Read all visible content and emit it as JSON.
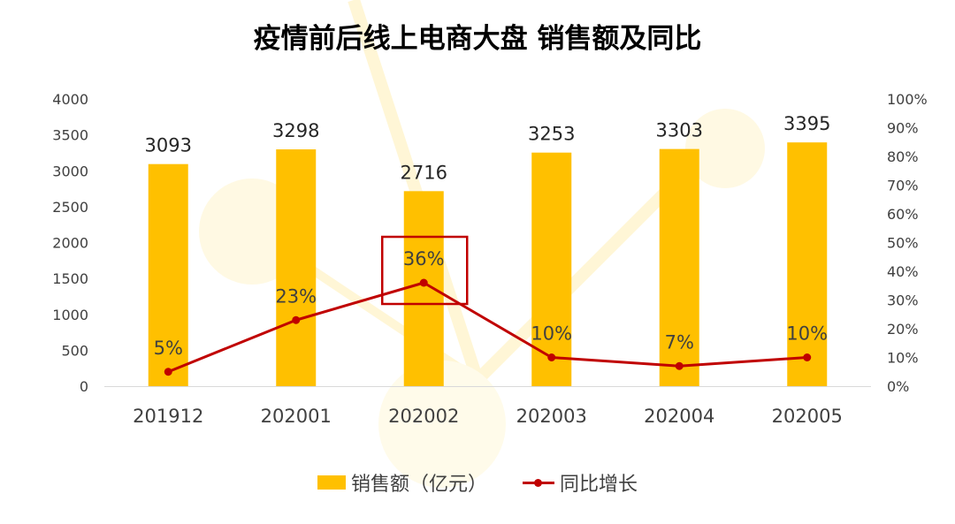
{
  "chart_data": {
    "type": "bar+line",
    "title": "疫情前后线上电商大盘 销售额及同比",
    "categories": [
      "201912",
      "202001",
      "202002",
      "202003",
      "202004",
      "202005"
    ],
    "series": [
      {
        "name": "销售额（亿元）",
        "type": "bar",
        "axis": "left",
        "values": [
          3093,
          3298,
          2716,
          3253,
          3303,
          3395
        ]
      },
      {
        "name": "同比增长",
        "type": "line",
        "axis": "right",
        "values": [
          5,
          23,
          36,
          10,
          7,
          10
        ],
        "labels": [
          "5%",
          "23%",
          "36%",
          "10%",
          "7%",
          "10%"
        ]
      }
    ],
    "y_left": {
      "min": 0,
      "max": 4000,
      "ticks": [
        "0",
        "500",
        "1000",
        "1500",
        "2000",
        "2500",
        "3000",
        "3500",
        "4000"
      ]
    },
    "y_right": {
      "min": 0,
      "max": 100,
      "ticks": [
        "0%",
        "10%",
        "20%",
        "30%",
        "40%",
        "50%",
        "60%",
        "70%",
        "80%",
        "90%",
        "100%"
      ]
    },
    "highlight_category": "202002",
    "grid": false,
    "legend_position": "bottom",
    "colors": {
      "bar": "#FFC000",
      "line": "#C00000",
      "highlight": "#C00000",
      "text": "#404040",
      "axis": "#D9D9D9"
    }
  }
}
